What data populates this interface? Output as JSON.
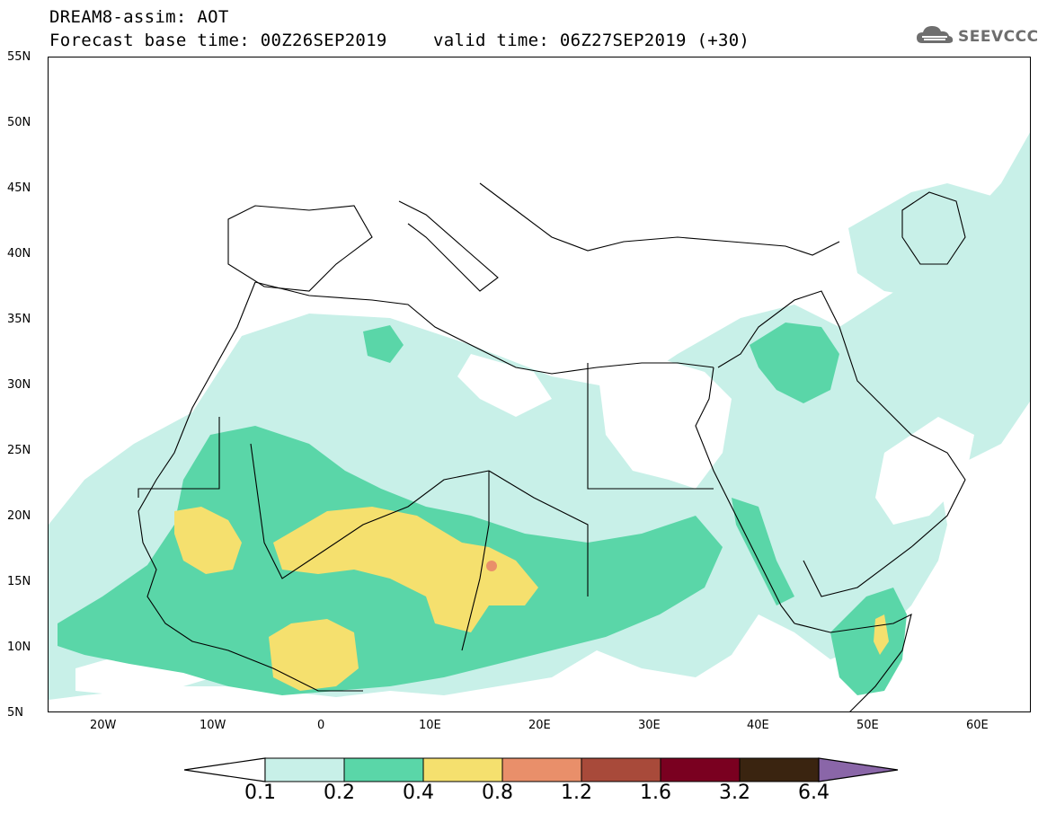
{
  "header": {
    "title": "DREAM8-assim: AOT",
    "base_time": "Forecast base time: 00Z26SEP2019",
    "valid_time": "valid time: 06Z27SEP2019 (+30)"
  },
  "logo": {
    "text": "SEEVCCC",
    "icon": "cloud-icon"
  },
  "map": {
    "lat_labels": [
      "55N",
      "50N",
      "45N",
      "40N",
      "35N",
      "30N",
      "25N",
      "20N",
      "15N",
      "10N",
      "5N"
    ],
    "lon_labels": [
      "20W",
      "10W",
      "0",
      "10E",
      "20E",
      "30E",
      "40E",
      "50E",
      "60E"
    ]
  },
  "legend": {
    "labels": [
      "0.1",
      "0.2",
      "0.4",
      "0.8",
      "1.2",
      "1.6",
      "3.2",
      "6.4"
    ],
    "colors": [
      "#ffffff",
      "#c8f0e8",
      "#5ad6a8",
      "#f5e06e",
      "#e98f6a",
      "#a84a3a",
      "#7a0020",
      "#3a2410",
      "#8a66a8"
    ]
  }
}
